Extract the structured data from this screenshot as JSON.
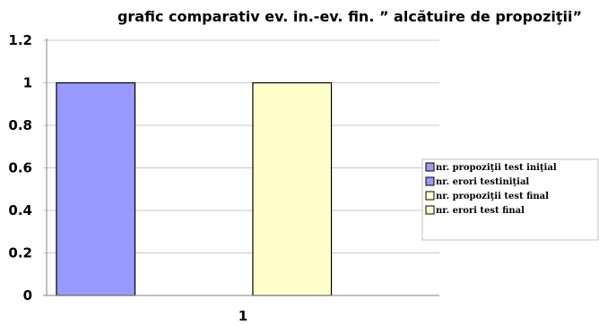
{
  "chart_data": {
    "type": "bar",
    "title": "grafic comparativ ev. in.-ev. fin. ” alcătuire de propoziţii”",
    "categories": [
      "1"
    ],
    "series": [
      {
        "name": "nr. propoziţii test iniţial",
        "values": [
          1
        ],
        "color": "#9999ff"
      },
      {
        "name": "nr. erori testiniţial",
        "values": [
          0
        ],
        "color": "#9999ff"
      },
      {
        "name": "nr. propoziţii test final",
        "values": [
          1
        ],
        "color": "#ffffcc"
      },
      {
        "name": "nr. erori test final",
        "values": [
          0
        ],
        "color": "#ffffcc"
      }
    ],
    "yticks": [
      "0",
      "0.2",
      "0.4",
      "0.6",
      "0.8",
      "1",
      "1.2"
    ],
    "ylim": [
      0,
      1.2
    ],
    "grid": true,
    "legend_position": "right"
  }
}
